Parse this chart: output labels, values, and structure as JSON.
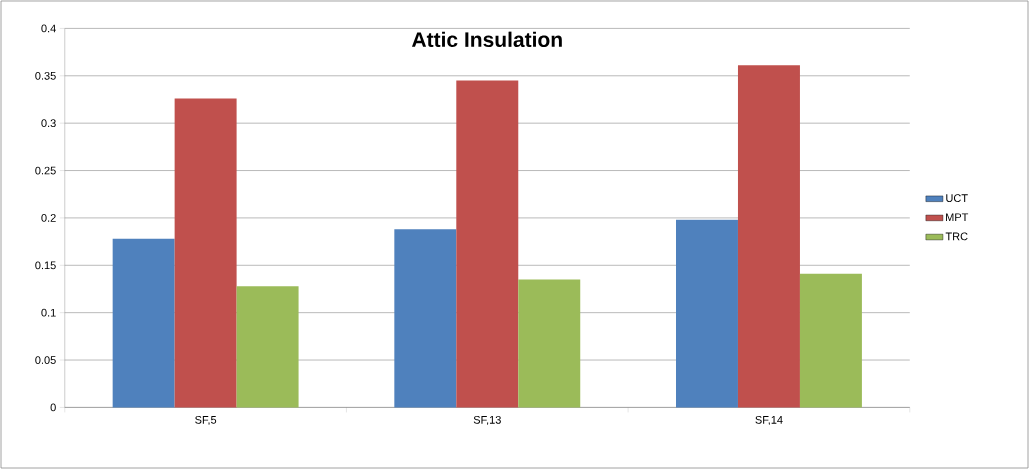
{
  "chart_data": {
    "type": "bar",
    "title": "Attic Insulation",
    "categories": [
      "SF,5",
      "SF,13",
      "SF,14"
    ],
    "series": [
      {
        "name": "UCT",
        "color": "#4f81bd",
        "values": [
          0.178,
          0.188,
          0.198
        ]
      },
      {
        "name": "MPT",
        "color": "#c0504d",
        "values": [
          0.326,
          0.345,
          0.361
        ]
      },
      {
        "name": "TRC",
        "color": "#9bbb59",
        "values": [
          0.128,
          0.135,
          0.141
        ]
      }
    ],
    "ylim": [
      0,
      0.4
    ],
    "yticks": [
      0,
      0.05,
      0.1,
      0.15,
      0.2,
      0.25,
      0.3,
      0.35,
      0.4
    ],
    "grid": "y",
    "legend": "right"
  }
}
